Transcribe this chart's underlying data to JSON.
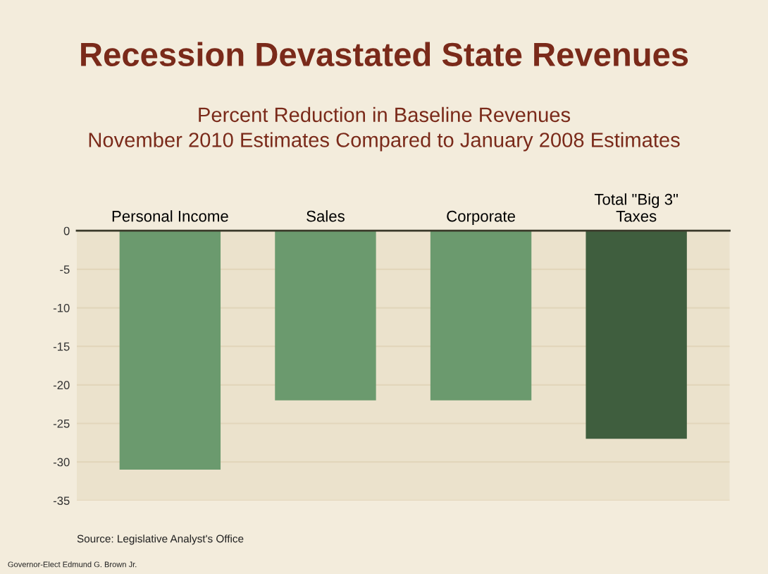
{
  "chart_data": {
    "type": "bar",
    "title": "Recession Devastated State Revenues",
    "subtitle": "Percent Reduction in Baseline Revenues\nNovember 2010 Estimates Compared to January 2008 Estimates",
    "categories": [
      "Personal Income",
      "Sales",
      "Corporate",
      "Total \"Big 3\"\nTaxes"
    ],
    "values": [
      -31,
      -22,
      -22,
      -27
    ],
    "colors": [
      "#6b9a6e",
      "#6b9a6e",
      "#6b9a6e",
      "#3f5e3e"
    ],
    "ylim": [
      -35,
      0
    ],
    "yticks": [
      0,
      -5,
      -10,
      -15,
      -20,
      -25,
      -30,
      -35
    ],
    "grid": "y",
    "annotations": [
      "Source: Legislative Analyst's Office",
      "Governor-Elect Edmund G. Brown Jr."
    ]
  }
}
